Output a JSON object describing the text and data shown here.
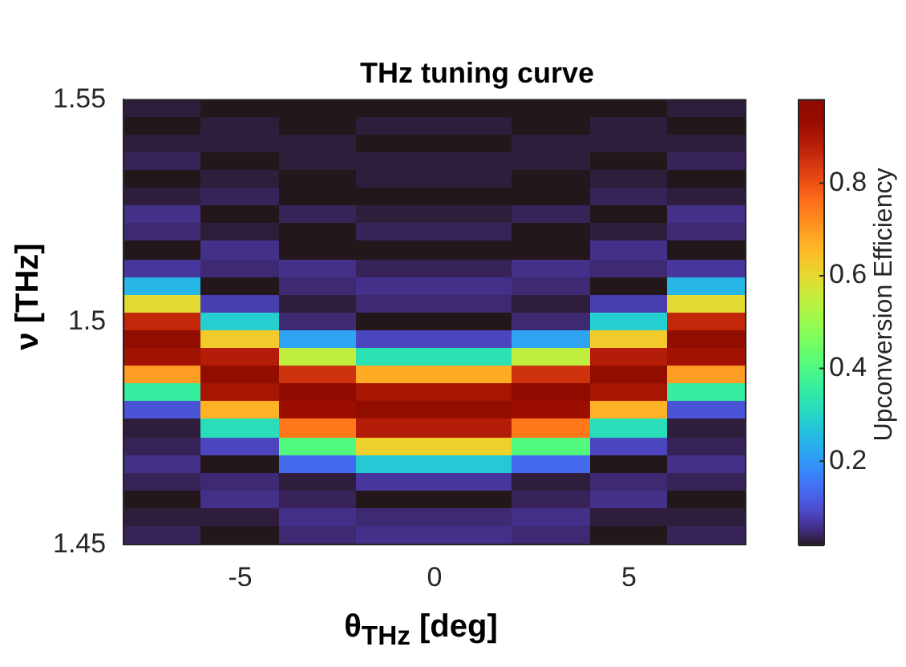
{
  "chart_data": {
    "type": "heatmap",
    "title": "THz tuning curve",
    "xlabel": "θ$_{THz}$ [deg]",
    "ylabel": "ν [THz]",
    "clabel": "Upconversion Efficiency",
    "x": [
      -7,
      -5,
      -3,
      -1,
      1,
      3,
      5,
      7
    ],
    "y": [
      1.548,
      1.544,
      1.54,
      1.536,
      1.532,
      1.528,
      1.524,
      1.52,
      1.516,
      1.512,
      1.508,
      1.504,
      1.5,
      1.496,
      1.492,
      1.488,
      1.484,
      1.48,
      1.476,
      1.472,
      1.468,
      1.464,
      1.46,
      1.456,
      1.452
    ],
    "xlim": [
      -8,
      8
    ],
    "xticks": [
      -5,
      0,
      5
    ],
    "ylim": [
      1.45,
      1.55
    ],
    "yticks": [
      1.45,
      1.5,
      1.55
    ],
    "clim": [
      0.02,
      0.98
    ],
    "cticks": [
      0.2,
      0.4,
      0.6,
      0.8
    ],
    "cells": [
      [
        0.03,
        0.02,
        0.02,
        0.02,
        0.02,
        0.02,
        0.02,
        0.03
      ],
      [
        0.02,
        0.03,
        0.02,
        0.03,
        0.03,
        0.02,
        0.03,
        0.02
      ],
      [
        0.03,
        0.03,
        0.03,
        0.02,
        0.02,
        0.03,
        0.03,
        0.03
      ],
      [
        0.04,
        0.02,
        0.03,
        0.03,
        0.03,
        0.03,
        0.02,
        0.04
      ],
      [
        0.02,
        0.03,
        0.02,
        0.03,
        0.03,
        0.02,
        0.03,
        0.02
      ],
      [
        0.03,
        0.04,
        0.02,
        0.02,
        0.02,
        0.02,
        0.04,
        0.03
      ],
      [
        0.06,
        0.02,
        0.04,
        0.03,
        0.03,
        0.04,
        0.02,
        0.06
      ],
      [
        0.05,
        0.03,
        0.02,
        0.04,
        0.04,
        0.02,
        0.03,
        0.05
      ],
      [
        0.02,
        0.06,
        0.02,
        0.02,
        0.02,
        0.02,
        0.06,
        0.02
      ],
      [
        0.07,
        0.05,
        0.06,
        0.04,
        0.04,
        0.06,
        0.05,
        0.07
      ],
      [
        0.25,
        0.02,
        0.05,
        0.06,
        0.06,
        0.05,
        0.02,
        0.25
      ],
      [
        0.6,
        0.08,
        0.03,
        0.05,
        0.05,
        0.03,
        0.08,
        0.6
      ],
      [
        0.87,
        0.29,
        0.05,
        0.02,
        0.02,
        0.05,
        0.29,
        0.87
      ],
      [
        0.98,
        0.63,
        0.22,
        0.09,
        0.09,
        0.22,
        0.63,
        0.98
      ],
      [
        0.92,
        0.89,
        0.55,
        0.33,
        0.33,
        0.55,
        0.89,
        0.92
      ],
      [
        0.7,
        0.98,
        0.85,
        0.68,
        0.68,
        0.85,
        0.98,
        0.7
      ],
      [
        0.36,
        0.91,
        0.97,
        0.91,
        0.91,
        0.97,
        0.91,
        0.36
      ],
      [
        0.11,
        0.67,
        0.93,
        0.98,
        0.98,
        0.93,
        0.67,
        0.11
      ],
      [
        0.03,
        0.32,
        0.75,
        0.89,
        0.89,
        0.75,
        0.32,
        0.03
      ],
      [
        0.04,
        0.09,
        0.41,
        0.62,
        0.62,
        0.41,
        0.09,
        0.04
      ],
      [
        0.06,
        0.02,
        0.14,
        0.28,
        0.28,
        0.14,
        0.02,
        0.06
      ],
      [
        0.04,
        0.05,
        0.03,
        0.07,
        0.07,
        0.03,
        0.05,
        0.04
      ],
      [
        0.02,
        0.06,
        0.04,
        0.02,
        0.02,
        0.04,
        0.06,
        0.02
      ],
      [
        0.03,
        0.03,
        0.06,
        0.05,
        0.05,
        0.06,
        0.03,
        0.03
      ],
      [
        0.04,
        0.02,
        0.05,
        0.06,
        0.06,
        0.05,
        0.02,
        0.04
      ]
    ]
  }
}
